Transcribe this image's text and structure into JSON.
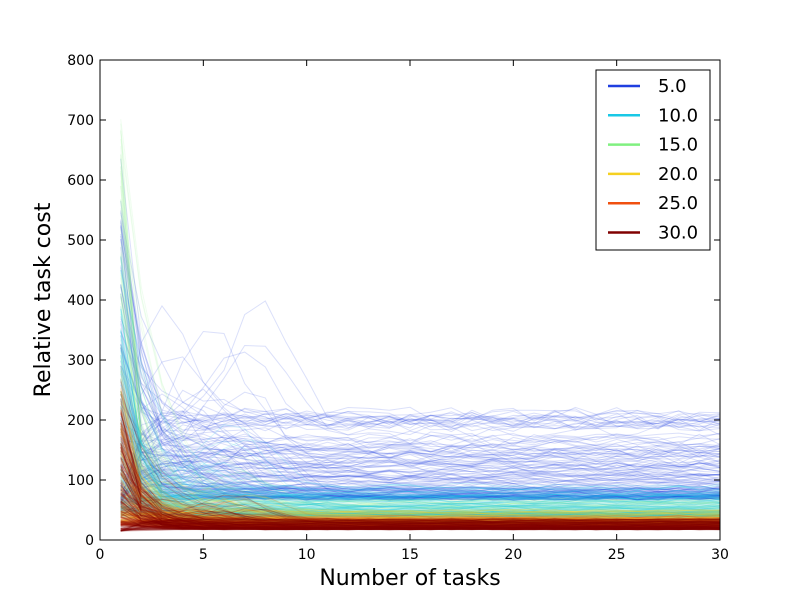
{
  "chart_data": {
    "type": "line",
    "title": "",
    "xlabel": "Number of tasks",
    "ylabel": "Relative task cost",
    "xlim": [
      0,
      30
    ],
    "ylim": [
      0,
      800
    ],
    "x_ticks": [
      "0",
      "5",
      "10",
      "15",
      "20",
      "25",
      "30"
    ],
    "y_ticks": [
      "0",
      "100",
      "200",
      "300",
      "400",
      "500",
      "600",
      "700",
      "800"
    ],
    "grid": false,
    "legend_position": "top-right",
    "x": [
      1,
      2,
      3,
      4,
      5,
      6,
      7,
      8,
      9,
      10,
      11,
      12,
      13,
      14,
      15,
      16,
      17,
      18,
      19,
      20,
      21,
      22,
      23,
      24,
      25,
      26,
      27,
      28,
      29,
      30
    ],
    "series": [
      {
        "name": "5.0",
        "color": "#1f3fe0",
        "start_range": [
          60,
          570
        ],
        "plateau_range": [
          70,
          210
        ],
        "typical_plateau": 95
      },
      {
        "name": "10.0",
        "color": "#19c8e6",
        "start_range": [
          50,
          480
        ],
        "plateau_range": [
          40,
          90
        ],
        "typical_plateau": 60
      },
      {
        "name": "15.0",
        "color": "#80f080",
        "start_range": [
          40,
          710
        ],
        "plateau_range": [
          30,
          70
        ],
        "typical_plateau": 45
      },
      {
        "name": "20.0",
        "color": "#f5d020",
        "start_range": [
          30,
          300
        ],
        "plateau_range": [
          25,
          50
        ],
        "typical_plateau": 35
      },
      {
        "name": "25.0",
        "color": "#f05010",
        "start_range": [
          25,
          270
        ],
        "plateau_range": [
          20,
          40
        ],
        "typical_plateau": 30
      },
      {
        "name": "30.0",
        "color": "#800000",
        "start_range": [
          15,
          260
        ],
        "plateau_range": [
          18,
          35
        ],
        "typical_plateau": 25
      }
    ]
  }
}
